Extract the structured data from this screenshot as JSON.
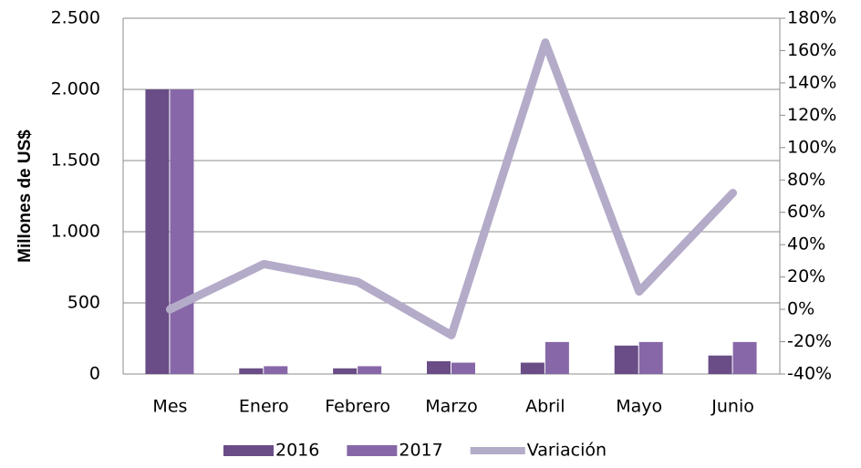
{
  "chart_data": {
    "type": "bar",
    "y_label": "Millones de US$",
    "categories": [
      "Mes",
      "Enero",
      "Febrero",
      "Marzo",
      "Abril",
      "Mayo",
      "Junio"
    ],
    "series": [
      {
        "name": "2016",
        "color": "#6a4d87",
        "values": [
          2000,
          40,
          40,
          90,
          80,
          200,
          130
        ]
      },
      {
        "name": "2017",
        "color": "#8767a8",
        "values": [
          2000,
          55,
          55,
          80,
          225,
          225,
          225
        ]
      },
      {
        "name": "Variación",
        "type": "line",
        "axis": "y2",
        "color": "#b4abc9",
        "values": [
          0,
          28,
          17,
          -16,
          165,
          11,
          72
        ]
      }
    ],
    "ylim": [
      0,
      2500
    ],
    "yticks": [
      0,
      500,
      {
        "value": 1000,
        "label": "1.000"
      },
      {
        "value": 1500,
        "label": "1.500"
      },
      {
        "value": 2000,
        "label": "2.000"
      },
      {
        "value": 2500,
        "label": "2.500"
      }
    ],
    "y2lim": [
      -40,
      180
    ],
    "y2ticks": [
      {
        "value": -40,
        "label": "-40%"
      },
      {
        "value": -20,
        "label": "-20%"
      },
      {
        "value": 0,
        "label": "0%"
      },
      {
        "value": 20,
        "label": "20%"
      },
      {
        "value": 40,
        "label": "40%"
      },
      {
        "value": 60,
        "label": "60%"
      },
      {
        "value": 80,
        "label": "80%"
      },
      {
        "value": 100,
        "label": "100%"
      },
      {
        "value": 120,
        "label": "120%"
      },
      {
        "value": 140,
        "label": "140%"
      },
      {
        "value": 160,
        "label": "160%"
      },
      {
        "value": 180,
        "label": "180%"
      }
    ],
    "grid": true,
    "legend": "bottom"
  }
}
